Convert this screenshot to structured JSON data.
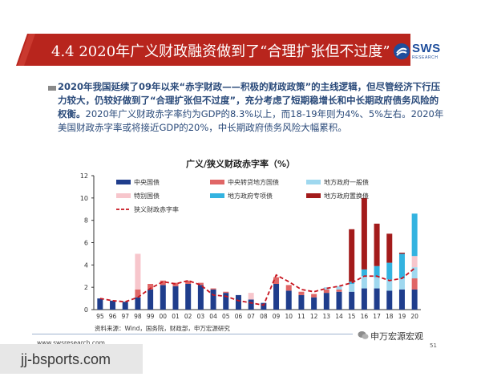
{
  "header": {
    "title": "4.4 2020年广义财政融资做到了“合理扩张但不过度”",
    "logo_text": "SWS",
    "logo_subtext": "RESEARCH"
  },
  "paragraph": {
    "bold_text": "2020年我国延续了09年以来“赤字财政——积极的财政政策”的主线逻辑，但尽管经济下行压力较大，仍较好做到了“合理扩张但不过度”，充分考虑了短期稳增长和中长期政府债务风险的权衡。",
    "normal_text": "2020年广义财政赤字率约为GDP的8.3%以上，而18-19年则为4%、5%左右。2020年美国财政赤字率或将接近GDP的20%，中长期政府债务风险大幅累积。"
  },
  "footer": {
    "source": "资料来源：Wind，国务院，财政部，申万宏源研究",
    "website": "www.swsresearch.com",
    "wechat": "申万宏源宏观",
    "page_number": "51",
    "watermark": "jj-bsports.com"
  },
  "colors": {
    "banner": "#b8251d",
    "central": "#1f3d8c",
    "central_transfer": "#e06666",
    "local_general": "#9fd8ef",
    "special": "#f7c6cc",
    "local_special": "#33b3e0",
    "local_swap": "#a31b1b",
    "deficit_line": "#c8141e"
  },
  "chart_data": {
    "type": "bar",
    "title": "广义/狭义财政赤字率（%）",
    "categories": [
      "95",
      "96",
      "97",
      "98",
      "99",
      "00",
      "01",
      "02",
      "03",
      "04",
      "05",
      "06",
      "07",
      "08",
      "09",
      "10",
      "11",
      "12",
      "13",
      "14",
      "15",
      "16",
      "17",
      "18",
      "19",
      "20"
    ],
    "ylim": [
      0,
      12
    ],
    "yticks": [
      0,
      2,
      4,
      6,
      8,
      10,
      12
    ],
    "series": [
      {
        "name": "中央国债",
        "key": "central",
        "values": [
          1.0,
          0.8,
          0.7,
          1.1,
          1.8,
          2.2,
          2.1,
          2.3,
          2.2,
          1.8,
          1.5,
          1.3,
          0.9,
          0.6,
          2.3,
          1.7,
          1.3,
          1.1,
          1.5,
          1.6,
          1.6,
          1.9,
          1.9,
          1.7,
          1.8,
          1.8
        ]
      },
      {
        "name": "中央转贷地方国债",
        "key": "central_transfer",
        "values": [
          0,
          0,
          0,
          0.7,
          0.5,
          0.4,
          0.3,
          0.3,
          0.2,
          0.1,
          0.1,
          0,
          0,
          0,
          0.6,
          0.5,
          0.3,
          0.3,
          0.3,
          0.2,
          0,
          0,
          0,
          0,
          0,
          1.0
        ]
      },
      {
        "name": "地方政府一般债",
        "key": "local_general",
        "values": [
          0,
          0,
          0,
          0,
          0,
          0,
          0,
          0,
          0,
          0,
          0,
          0,
          0,
          0,
          0,
          0,
          0,
          0,
          0.2,
          0.3,
          0.7,
          1.1,
          1.0,
          1.0,
          1.0,
          1.0
        ]
      },
      {
        "name": "特别国债",
        "key": "special",
        "values": [
          0,
          0,
          0,
          3.2,
          0,
          0,
          0,
          0,
          0,
          0,
          0,
          0,
          0.6,
          0,
          0,
          0,
          0,
          0,
          0,
          0,
          0,
          0,
          0,
          0,
          0,
          1.0
        ]
      },
      {
        "name": "地方政府专项债",
        "key": "local_special",
        "values": [
          0,
          0,
          0,
          0,
          0,
          0,
          0,
          0,
          0,
          0,
          0,
          0,
          0,
          0,
          0,
          0,
          0,
          0,
          0,
          0,
          0.2,
          0.6,
          1.0,
          1.5,
          2.2,
          3.8
        ]
      },
      {
        "name": "地方政府置换债",
        "key": "local_swap",
        "values": [
          0,
          0,
          0,
          0,
          0,
          0,
          0,
          0,
          0,
          0,
          0,
          0,
          0,
          0,
          0,
          0,
          0,
          0,
          0,
          0,
          4.7,
          6.4,
          3.8,
          2.6,
          0.1,
          0
        ]
      }
    ],
    "line": {
      "name": "狭义财政赤字率",
      "key": "deficit_line",
      "values": [
        1.0,
        0.8,
        0.7,
        1.1,
        1.9,
        2.5,
        2.3,
        2.6,
        2.2,
        1.3,
        1.2,
        0.8,
        0.6,
        0.4,
        3.1,
        2.5,
        1.8,
        1.6,
        1.9,
        2.1,
        2.4,
        3.0,
        3.0,
        2.6,
        2.8,
        3.7
      ]
    }
  }
}
